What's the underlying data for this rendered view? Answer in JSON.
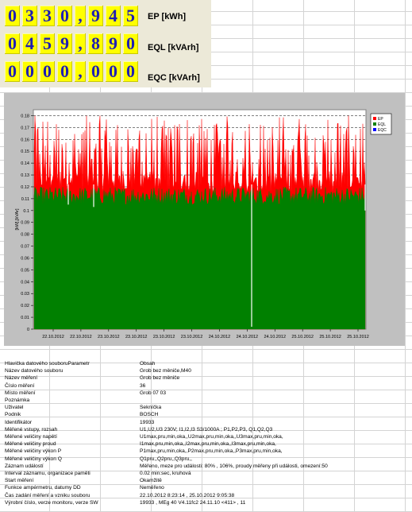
{
  "counters": [
    {
      "digits": [
        "0",
        "3",
        "3",
        "0",
        ",",
        "9",
        "4",
        "5"
      ],
      "label": "EP [kWh]"
    },
    {
      "digits": [
        "0",
        "4",
        "5",
        "9",
        ",",
        "8",
        "9",
        "0"
      ],
      "label": "EQL [kVArh]"
    },
    {
      "digits": [
        "0",
        "0",
        "0",
        "0",
        ",",
        "0",
        "0",
        "0"
      ],
      "label": "EQC [kVArh]"
    }
  ],
  "chart_data": {
    "type": "area",
    "title": "",
    "xlabel": "",
    "ylabel": "[kW],[kVAr]",
    "ylim": [
      0,
      0.185
    ],
    "yticks": [
      "0",
      "0.01",
      "0.02",
      "0.03",
      "0.04",
      "0.05",
      "0.06",
      "0.07",
      "0.08",
      "0.09",
      "0.1",
      "0.11",
      "0.12",
      "0.13",
      "0.14",
      "0.15",
      "0.16",
      "0.17",
      "0.18"
    ],
    "xticks": [
      "22.10.2012",
      "22.10.2012",
      "23.10.2012",
      "23.10.2012",
      "23.10.2012",
      "23.10.2012",
      "24.10.2012",
      "24.10.2012",
      "24.10.2012",
      "25.10.2012",
      "25.10.2012",
      "25.10.2012"
    ],
    "grid": true,
    "legend_position": "top-right",
    "series": [
      {
        "name": "EP",
        "color": "#ff0000",
        "typical_range": [
          0.11,
          0.185
        ]
      },
      {
        "name": "EQL",
        "color": "#008000",
        "typical_range": [
          0.105,
          0.12
        ]
      },
      {
        "name": "EQC",
        "color": "#0000ff",
        "typical_range": [
          0,
          0
        ]
      }
    ]
  },
  "table": {
    "rows": [
      [
        "Hlavička datového souboruParametr",
        "Obsah"
      ],
      [
        "Název datového souboru",
        "Grob  bez  měniče,M40"
      ],
      [
        "Název měření",
        "Grob bez  měniče"
      ],
      [
        "Číslo měření",
        "             36"
      ],
      [
        "Místo měření",
        "Grob 07  03"
      ],
      [
        "Poznámka",
        ""
      ],
      [
        "Uživatel",
        "Sekníčka"
      ],
      [
        "Podnik",
        "BOSCH"
      ],
      [
        "Identifikátor",
        "      19933"
      ],
      [
        "Měřené vstupy, rozsah",
        "U1,U2,U3  230V; I1,I2,I3   S3/1000A ; P1,P2,P3, Q1,Q2,Q3"
      ],
      [
        "Měřené veličiny napětí",
        "U1max,pru,min,oka,,U2max,pru,min,oka,,U3max,pru,min,oka,"
      ],
      [
        "Měřené veličiny proud",
        "I1max,pru,min,oka,,I2max,pru,min,oka,,I3max,pru,min,oka,"
      ],
      [
        "Měřené veličiny výkon P",
        "P1max,pru,min,oka,,P2max,pru,min,oka,,P3max,pru,min,oka,"
      ],
      [
        "Měřené veličiny výkon Q",
        "Q1pru,,Q2pru,,Q3pru,,"
      ],
      [
        "Záznam událostí",
        "Měřeno, meze pro události: 80% , 106%, proudy měřeny při události, omezení:50"
      ],
      [
        "Interval záznamu, organizace paměti",
        "0.02 min:sec,  kruhová"
      ],
      [
        "Start měření",
        "Okamžitě"
      ],
      [
        "Funkce ampérmetru, datumy DD",
        "Neměřeno"
      ],
      [
        "Čas zadání měření a vzniku souboru",
        "22.10.2012 8:23:14 , 25.10.2012 9:05:38"
      ],
      [
        "Výrobní číslo, verze monitoru, verze SW",
        "19933 , MEg 40 V4.11fc2 24.11.10 <411> , 11"
      ]
    ]
  }
}
